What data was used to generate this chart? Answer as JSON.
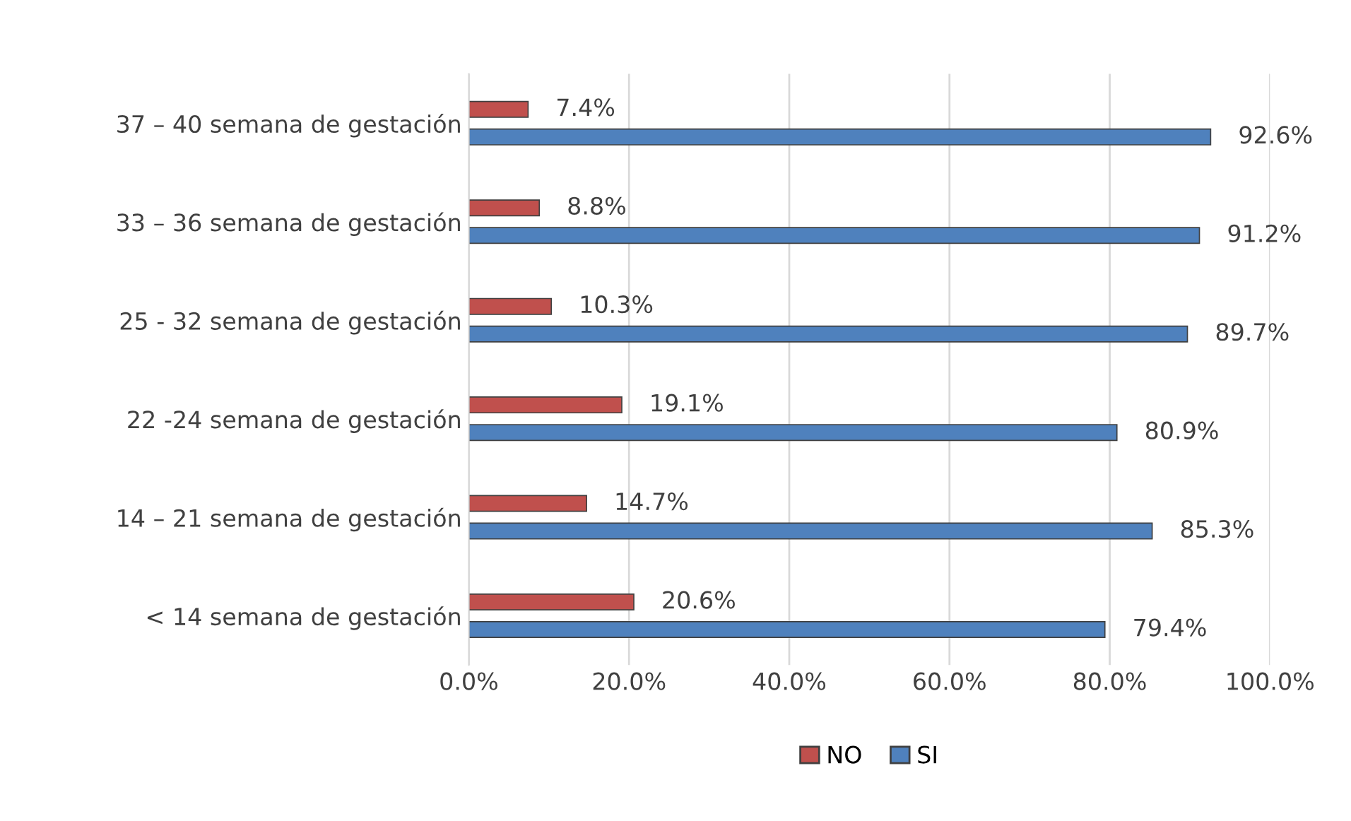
{
  "chart_data": {
    "type": "bar",
    "orientation": "horizontal",
    "categories": [
      "37 – 40 semana de gestación",
      "33 – 36 semana de gestación",
      "25 - 32 semana de gestación",
      "22 -24 semana de gestación",
      "14 – 21 semana de gestación",
      "< 14 semana de gestación"
    ],
    "series": [
      {
        "name": "NO",
        "color": "#c0504d",
        "values": [
          7.4,
          8.8,
          10.3,
          19.1,
          14.7,
          20.6
        ],
        "value_labels": [
          "7.4%",
          "8.8%",
          "10.3%",
          "19.1%",
          "14.7%",
          "20.6%"
        ]
      },
      {
        "name": "SI",
        "color": "#4f81bd",
        "values": [
          92.6,
          91.2,
          89.7,
          80.9,
          85.3,
          79.4
        ],
        "value_labels": [
          "92.6%",
          "91.2%",
          "89.7%",
          "80.9%",
          "85.3%",
          "79.4%"
        ]
      }
    ],
    "xlim": [
      0,
      100
    ],
    "xticks": [
      {
        "value": 0,
        "label": "0.0%"
      },
      {
        "value": 20,
        "label": "20.0%"
      },
      {
        "value": 40,
        "label": "40.0%"
      },
      {
        "value": 60,
        "label": "60.0%"
      },
      {
        "value": 80,
        "label": "80.0%"
      },
      {
        "value": 100,
        "label": "100.0%"
      }
    ],
    "grid": "x",
    "legend": "bottom"
  }
}
